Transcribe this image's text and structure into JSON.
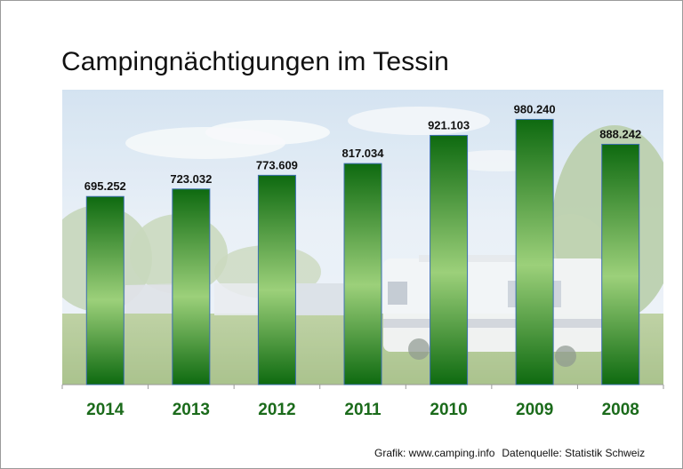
{
  "chart_data": {
    "type": "bar",
    "title": "Campingnächtigungen im Tessin",
    "categories": [
      "2014",
      "2013",
      "2012",
      "2011",
      "2010",
      "2009",
      "2008"
    ],
    "values": [
      695252,
      723032,
      773609,
      817034,
      921103,
      980240,
      888242
    ],
    "value_labels": [
      "695.252",
      "723.032",
      "773.609",
      "817.034",
      "921.103",
      "980.240",
      "888.242"
    ],
    "ylim": [
      0,
      1090000
    ],
    "xlabel": "",
    "ylabel": "",
    "grid": false,
    "legend": "none"
  },
  "footer": {
    "graphic": "Grafik: www.camping.info",
    "source": "Datenquelle: Statistik Schweiz"
  },
  "colors": {
    "bar_dark": "#0e6a10",
    "bar_light": "#9cd07a",
    "bar_border": "#3d6fb0",
    "category_text": "#1b6b1b"
  }
}
